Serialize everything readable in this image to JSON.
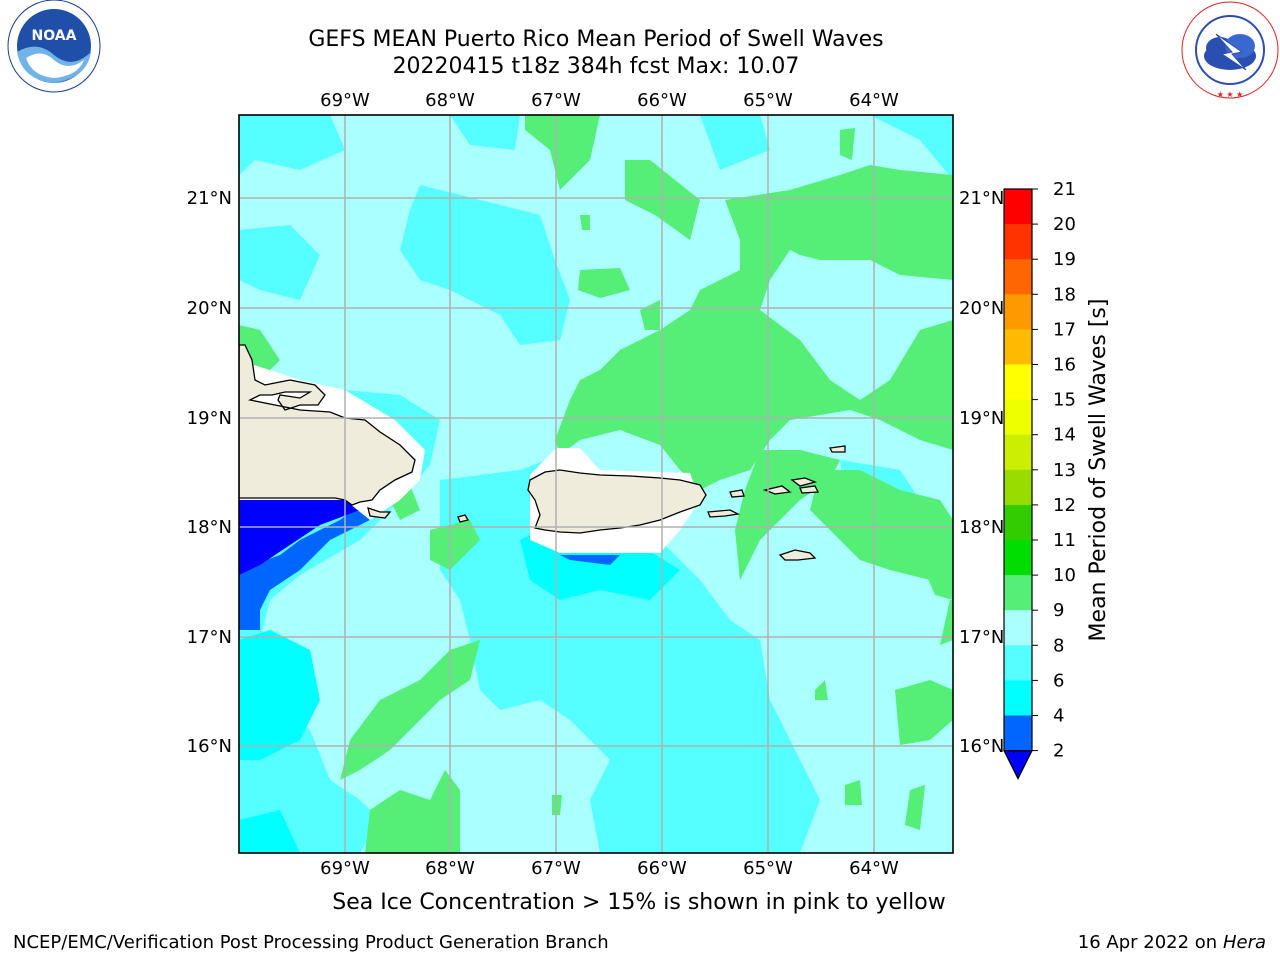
{
  "title": {
    "line1": "GEFS MEAN Puerto Rico Mean Period of Swell Waves",
    "line2": "20220415 t18z 384h fcst   Max: 10.07"
  },
  "map": {
    "lon_labels": [
      "69°W",
      "68°W",
      "67°W",
      "66°W",
      "65°W",
      "64°W"
    ],
    "lat_labels": [
      "21°N",
      "20°N",
      "19°N",
      "18°N",
      "17°N",
      "16°N"
    ],
    "extent": {
      "lon": [
        -70.0,
        -63.25
      ],
      "lat": [
        15.0,
        21.75
      ]
    },
    "gridlines": true,
    "land_color": "#efecdc",
    "islands": [
      "Hispaniola",
      "Puerto Rico",
      "Virgin Islands"
    ]
  },
  "colorbar": {
    "label": "Mean Period of Swell Waves [s]",
    "ticks": [
      "2",
      "4",
      "6",
      "8",
      "9",
      "10",
      "11",
      "12",
      "13",
      "14",
      "15",
      "16",
      "17",
      "18",
      "19",
      "20",
      "21"
    ],
    "bins": [
      {
        "min": 2,
        "max": 4,
        "color": "#0066ff"
      },
      {
        "min": 4,
        "max": 6,
        "color": "#00ffff"
      },
      {
        "min": 6,
        "max": 8,
        "color": "#55ffff"
      },
      {
        "min": 8,
        "max": 9,
        "color": "#aaffff"
      },
      {
        "min": 9,
        "max": 10,
        "color": "#55ee77"
      },
      {
        "min": 10,
        "max": 11,
        "color": "#00dd00"
      },
      {
        "min": 11,
        "max": 12,
        "color": "#33cc00"
      },
      {
        "min": 12,
        "max": 13,
        "color": "#99dd00"
      },
      {
        "min": 13,
        "max": 14,
        "color": "#ccee00"
      },
      {
        "min": 14,
        "max": 15,
        "color": "#eeff00"
      },
      {
        "min": 15,
        "max": 16,
        "color": "#ffff00"
      },
      {
        "min": 16,
        "max": 17,
        "color": "#ffbb00"
      },
      {
        "min": 17,
        "max": 18,
        "color": "#ff9900"
      },
      {
        "min": 18,
        "max": 19,
        "color": "#ff6600"
      },
      {
        "min": 19,
        "max": 20,
        "color": "#ff3300"
      },
      {
        "min": 20,
        "max": 21,
        "color": "#ff0000"
      }
    ],
    "under_color": "#0000ff"
  },
  "caption": "Sea Ice Concentration > 15% is shown in pink to yellow",
  "footer": {
    "left": "NCEP/EMC/Verification Post Processing Product Generation Branch",
    "right_date": "16 Apr 2022 on ",
    "right_machine": "Hera"
  },
  "logos": {
    "noaa_text": "NOAA",
    "nws_text": "NATIONAL WEATHER SERVICE"
  }
}
